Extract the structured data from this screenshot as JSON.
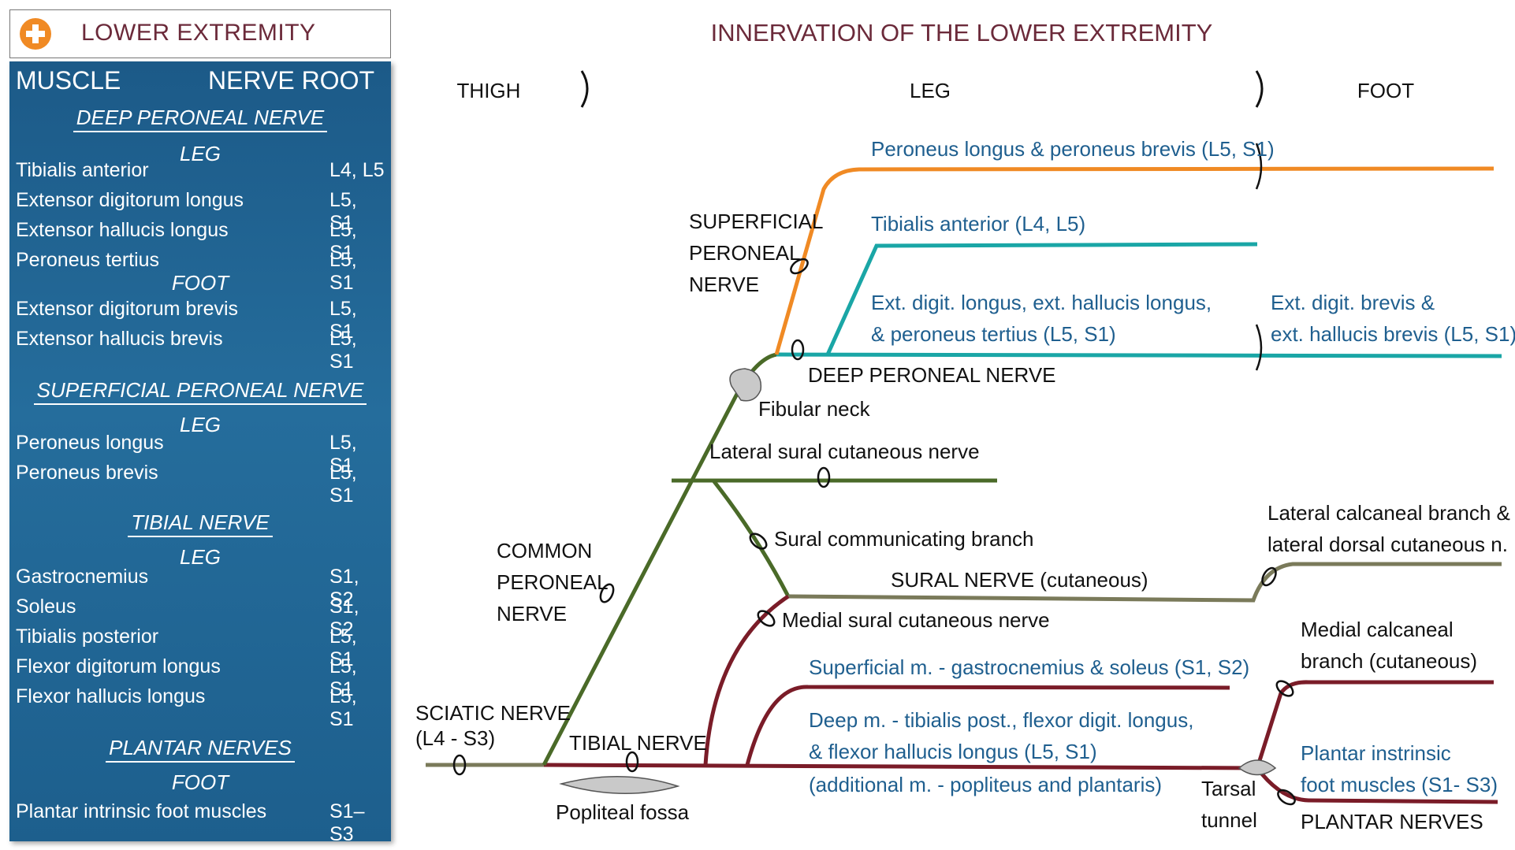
{
  "panel": {
    "title": "LOWER EXTREMITY",
    "col_muscle": "MUSCLE",
    "col_root": "NERVE ROOT",
    "sections": {
      "deep": {
        "title": "DEEP PERONEAL NERVE",
        "leg": "LEG",
        "foot": "FOOT",
        "rows": [
          {
            "m": "Tibialis anterior",
            "r": "L4, L5"
          },
          {
            "m": "Extensor digitorum longus",
            "r": "L5, S1"
          },
          {
            "m": "Extensor hallucis longus",
            "r": "L5, S1"
          },
          {
            "m": "Peroneus tertius",
            "r": "L5, S1"
          },
          {
            "m": "Extensor digitorum brevis",
            "r": "L5, S1"
          },
          {
            "m": "Extensor hallucis brevis",
            "r": "L5, S1"
          }
        ]
      },
      "superficial": {
        "title": "SUPERFICIAL PERONEAL NERVE",
        "leg": "LEG",
        "rows": [
          {
            "m": "Peroneus longus",
            "r": "L5, S1"
          },
          {
            "m": "Peroneus brevis",
            "r": "L5, S1"
          }
        ]
      },
      "tibial": {
        "title": "TIBIAL NERVE",
        "leg": "LEG",
        "rows": [
          {
            "m": "Gastrocnemius",
            "r": "S1, S2"
          },
          {
            "m": "Soleus",
            "r": "S1, S2"
          },
          {
            "m": "Tibialis posterior",
            "r": "L5, S1"
          },
          {
            "m": "Flexor digitorum longus",
            "r": "L5, S1"
          },
          {
            "m": "Flexor hallucis longus",
            "r": "L5, S1"
          }
        ]
      },
      "plantar": {
        "title": "PLANTAR NERVES",
        "foot": "FOOT",
        "rows": [
          {
            "m": "Plantar intrinsic foot muscles",
            "r": "S1–S3"
          }
        ]
      }
    }
  },
  "diagram": {
    "title": "INNERVATION OF THE LOWER EXTREMITY",
    "regions": {
      "thigh": "THIGH",
      "leg": "LEG",
      "foot": "FOOT"
    },
    "colors": {
      "superficial": "#f08a24",
      "deep": "#1aa6a6",
      "common": "#4a6a28",
      "sural": "#7a7a5a",
      "tibial": "#7a1c28",
      "text_blue": "#1f5f8f"
    },
    "labels": {
      "superficial_peroneal": [
        "SUPERFICIAL",
        "PERONEAL",
        "NERVE"
      ],
      "common_peroneal": [
        "COMMON",
        "PERONEAL",
        "NERVE"
      ],
      "sciatic": [
        "SCIATIC NERVE",
        "(L4 - S3)"
      ],
      "tibial": "TIBIAL NERVE",
      "deep_peroneal": "DEEP PERONEAL NERVE",
      "fibular_neck": "Fibular neck",
      "lateral_sural": "Lateral sural cutaneous nerve",
      "sural_comm": "Sural communicating branch",
      "sural": "SURAL NERVE (cutaneous)",
      "medial_sural": "Medial sural cutaneous nerve",
      "popliteal": "Popliteal fossa",
      "tarsal": [
        "Tarsal",
        "tunnel"
      ],
      "plantar_nerves": "PLANTAR NERVES",
      "lat_calc": [
        "Lateral calcaneal branch &",
        "lateral dorsal cutaneous n."
      ],
      "med_calc": [
        "Medial calcaneal",
        "branch (cutaneous)"
      ]
    },
    "muscles": {
      "peroneus": "Peroneus longus & peroneus brevis (L5, S1)",
      "tib_ant": "Tibialis anterior (L4, L5)",
      "ext_digit": [
        "Ext. digit. longus, ext. hallucis longus,",
        "& peroneus tertius (L5, S1)"
      ],
      "ext_brevis": [
        "Ext. digit. brevis &",
        "ext. hallucis brevis (L5, S1)"
      ],
      "superficial_m": "Superficial m. - gastrocnemius & soleus (S1, S2)",
      "deep_m": [
        "Deep m. - tibialis post., flexor digit. longus,",
        "& flexor hallucis longus (L5, S1)"
      ],
      "additional_m": "(additional m. - popliteus and plantaris)",
      "plantar_intrinsic": [
        "Plantar instrinsic",
        "foot muscles (S1- S3)"
      ]
    }
  }
}
